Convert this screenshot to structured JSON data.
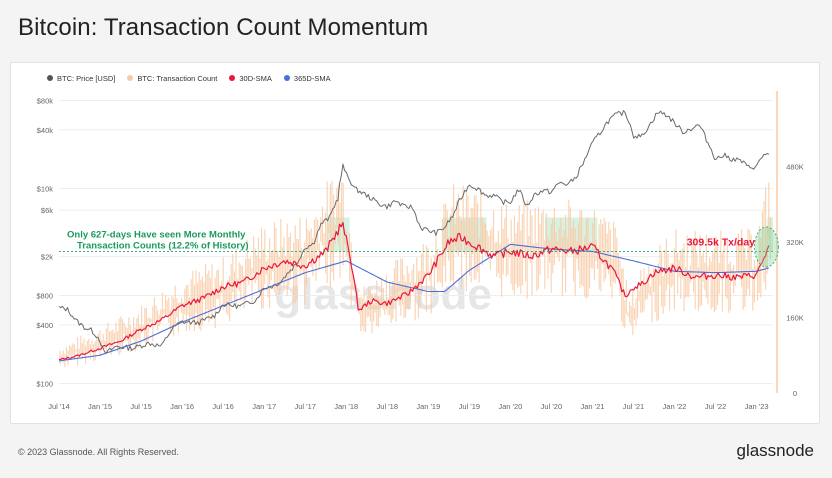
{
  "header": {
    "title": "Bitcoin: Transaction Count Momentum"
  },
  "legend": [
    {
      "label": "BTC: Price [USD]",
      "color": "#555555"
    },
    {
      "label": "BTC: Transaction Count",
      "color": "#f9c9a4"
    },
    {
      "label": "30D-SMA",
      "color": "#e8173d"
    },
    {
      "label": "365D-SMA",
      "color": "#4a6fd8"
    }
  ],
  "annotations": {
    "threshold_text_line1": "Only 627-days Have seen More Monthly",
    "threshold_text_line2": "Transaction Counts (12.2% of History)",
    "current_value": "309.5k Tx/day"
  },
  "watermark": "glassnode",
  "footer": {
    "copyright": "© 2023 Glassnode. All Rights Reserved.",
    "brand": "glassnode"
  },
  "chart_data": {
    "type": "line",
    "title": "Bitcoin: Transaction Count Momentum",
    "y_left": {
      "label": "BTC: Price [USD]",
      "scale": "log",
      "ticks": [
        "$100",
        "$400",
        "$800",
        "$2k",
        "$6k",
        "$10k",
        "$40k",
        "$80k"
      ],
      "tick_values": [
        100,
        400,
        800,
        2000,
        6000,
        10000,
        40000,
        80000
      ]
    },
    "y_right": {
      "label": "BTC: Transaction Count",
      "ticks": [
        "0",
        "160K",
        "320K",
        "480K"
      ],
      "tick_values": [
        0,
        160000,
        320000,
        480000
      ],
      "range": [
        0,
        640000
      ]
    },
    "x_ticks": [
      "Jul '14",
      "Jan '15",
      "Jul '15",
      "Jan '16",
      "Jul '16",
      "Jan '17",
      "Jul '17",
      "Jan '18",
      "Jul '18",
      "Jan '19",
      "Jul '19",
      "Jan '20",
      "Jul '20",
      "Jan '21",
      "Jul '21",
      "Jan '22",
      "Jul '22",
      "Jan '23"
    ],
    "x_tick_years": [
      2014.5,
      2015.0,
      2015.5,
      2016.0,
      2016.5,
      2017.0,
      2017.5,
      2018.0,
      2018.5,
      2019.0,
      2019.5,
      2020.0,
      2020.5,
      2021.0,
      2021.5,
      2022.0,
      2022.5,
      2023.0
    ],
    "x_range": [
      2014.5,
      2023.2
    ],
    "threshold_tx": 300000,
    "current_tx": 309500,
    "series": [
      {
        "name": "BTC: Price [USD]",
        "axis": "left",
        "x": [
          2014.5,
          2014.6,
          2014.7,
          2014.8,
          2014.9,
          2015.0,
          2015.05,
          2015.2,
          2015.4,
          2015.6,
          2015.75,
          2015.9,
          2016.0,
          2016.2,
          2016.4,
          2016.5,
          2016.7,
          2016.9,
          2017.0,
          2017.1,
          2017.2,
          2017.4,
          2017.5,
          2017.6,
          2017.7,
          2017.8,
          2017.9,
          2017.96,
          2018.0,
          2018.1,
          2018.2,
          2018.3,
          2018.4,
          2018.5,
          2018.6,
          2018.7,
          2018.8,
          2018.9,
          2019.0,
          2019.1,
          2019.2,
          2019.3,
          2019.4,
          2019.5,
          2019.6,
          2019.7,
          2019.8,
          2019.9,
          2020.0,
          2020.1,
          2020.2,
          2020.3,
          2020.4,
          2020.5,
          2020.6,
          2020.7,
          2020.8,
          2020.9,
          2021.0,
          2021.1,
          2021.2,
          2021.3,
          2021.4,
          2021.5,
          2021.6,
          2021.7,
          2021.8,
          2021.9,
          2022.0,
          2022.1,
          2022.2,
          2022.3,
          2022.4,
          2022.5,
          2022.6,
          2022.7,
          2022.8,
          2022.9,
          2023.0,
          2023.1,
          2023.15
        ],
        "values": [
          600,
          580,
          450,
          380,
          350,
          280,
          200,
          240,
          230,
          260,
          240,
          380,
          430,
          420,
          500,
          650,
          620,
          720,
          960,
          1000,
          1100,
          1700,
          2500,
          2700,
          4400,
          5000,
          8000,
          17000,
          14000,
          10000,
          9000,
          8000,
          7000,
          6500,
          7500,
          6500,
          6500,
          4000,
          3700,
          3500,
          4000,
          5200,
          8000,
          11000,
          10000,
          8500,
          8500,
          7300,
          7200,
          9800,
          6500,
          8800,
          9500,
          9200,
          11500,
          11000,
          13000,
          19000,
          29000,
          38000,
          50000,
          58000,
          60000,
          35000,
          34000,
          45000,
          61000,
          57000,
          47000,
          38000,
          41000,
          45000,
          30000,
          20000,
          22000,
          20000,
          19500,
          16500,
          16800,
          23000,
          22000
        ]
      },
      {
        "name": "BTC: Transaction Count",
        "axis": "right",
        "x": [
          2014.5,
          2015.0,
          2015.5,
          2016.0,
          2016.5,
          2017.0,
          2017.5,
          2017.95,
          2018.0,
          2018.1,
          2018.2,
          2018.5,
          2019.0,
          2019.3,
          2019.5,
          2020.0,
          2020.5,
          2021.0,
          2021.3,
          2021.45,
          2021.6,
          2022.0,
          2022.5,
          2023.0,
          2023.15
        ],
        "values": [
          75000,
          105000,
          140000,
          190000,
          215000,
          270000,
          285000,
          370000,
          330000,
          230000,
          170000,
          200000,
          250000,
          330000,
          330000,
          300000,
          310000,
          300000,
          270000,
          150000,
          210000,
          260000,
          255000,
          260000,
          355000
        ]
      },
      {
        "name": "30D-SMA",
        "axis": "right",
        "x": [
          2014.5,
          2014.75,
          2015.0,
          2015.25,
          2015.5,
          2015.75,
          2016.0,
          2016.25,
          2016.5,
          2016.75,
          2017.0,
          2017.25,
          2017.5,
          2017.75,
          2017.95,
          2018.05,
          2018.15,
          2018.3,
          2018.5,
          2018.75,
          2019.0,
          2019.25,
          2019.4,
          2019.6,
          2019.8,
          2020.0,
          2020.25,
          2020.5,
          2020.75,
          2021.0,
          2021.25,
          2021.4,
          2021.5,
          2021.6,
          2021.75,
          2022.0,
          2022.25,
          2022.5,
          2022.75,
          2023.0,
          2023.1,
          2023.15
        ],
        "values": [
          70000,
          80000,
          95000,
          110000,
          135000,
          155000,
          185000,
          200000,
          225000,
          235000,
          265000,
          280000,
          270000,
          300000,
          360000,
          290000,
          175000,
          195000,
          190000,
          210000,
          250000,
          320000,
          330000,
          310000,
          290000,
          300000,
          290000,
          305000,
          300000,
          310000,
          260000,
          205000,
          225000,
          230000,
          255000,
          265000,
          245000,
          250000,
          245000,
          250000,
          290000,
          309500
        ]
      },
      {
        "name": "365D-SMA",
        "axis": "right",
        "x": [
          2014.5,
          2015.0,
          2015.5,
          2016.0,
          2016.5,
          2017.0,
          2017.5,
          2018.0,
          2018.5,
          2019.0,
          2019.2,
          2019.5,
          2020.0,
          2020.5,
          2021.0,
          2021.5,
          2022.0,
          2022.5,
          2023.0,
          2023.15
        ],
        "values": [
          68000,
          80000,
          110000,
          150000,
          185000,
          220000,
          255000,
          280000,
          235000,
          215000,
          215000,
          260000,
          315000,
          305000,
          300000,
          280000,
          258000,
          255000,
          258000,
          265000
        ]
      }
    ]
  }
}
